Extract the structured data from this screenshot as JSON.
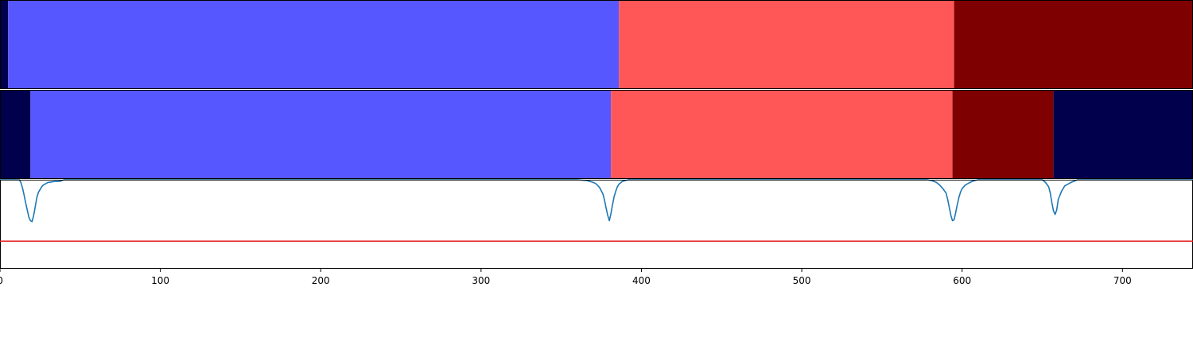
{
  "chart_data": [
    {
      "type": "heatmap",
      "panel": "track-1",
      "x_range": [
        0,
        744
      ],
      "segments": [
        {
          "start": 0,
          "end": 5,
          "color": "#00004c"
        },
        {
          "start": 5,
          "end": 386,
          "color": "#5757ff"
        },
        {
          "start": 386,
          "end": 595,
          "color": "#ff5757"
        },
        {
          "start": 595,
          "end": 744,
          "color": "#7f0000"
        }
      ]
    },
    {
      "type": "heatmap",
      "panel": "track-2",
      "x_range": [
        0,
        744
      ],
      "segments": [
        {
          "start": 0,
          "end": 19,
          "color": "#00004c"
        },
        {
          "start": 19,
          "end": 381,
          "color": "#5757ff"
        },
        {
          "start": 381,
          "end": 594,
          "color": "#ff5757"
        },
        {
          "start": 594,
          "end": 657,
          "color": "#7f0000"
        },
        {
          "start": 657,
          "end": 744,
          "color": "#00004c"
        }
      ]
    },
    {
      "type": "line",
      "panel": "signal",
      "x_range": [
        0,
        744
      ],
      "ylim": [
        0,
        1
      ],
      "xticks": [
        0,
        100,
        200,
        300,
        400,
        500,
        600,
        700
      ],
      "threshold": 0.31,
      "threshold_color": "#e31a1c",
      "line_color": "#1f77b4",
      "x": [
        0,
        12,
        13,
        14,
        15,
        16,
        17,
        18,
        19,
        20,
        21,
        22,
        23,
        24,
        25,
        26,
        27,
        28,
        29,
        30,
        31,
        32,
        34,
        36,
        38,
        40,
        360,
        366,
        370,
        372,
        374,
        376,
        377,
        378,
        379,
        380,
        381,
        382,
        383,
        384,
        385,
        386,
        388,
        390,
        392,
        394,
        578,
        581,
        584,
        586,
        588,
        590,
        591,
        592,
        593,
        594,
        595,
        596,
        597,
        598,
        599,
        600,
        602,
        604,
        606,
        608,
        610,
        640,
        650,
        652,
        654,
        655,
        656,
        657,
        658,
        659,
        660,
        662,
        664,
        668,
        672,
        744
      ],
      "y": [
        1.0,
        1.0,
        0.97,
        0.91,
        0.83,
        0.74,
        0.66,
        0.58,
        0.54,
        0.53,
        0.6,
        0.7,
        0.8,
        0.86,
        0.89,
        0.92,
        0.94,
        0.95,
        0.96,
        0.97,
        0.97,
        0.975,
        0.98,
        0.98,
        0.985,
        1.0,
        1.0,
        0.99,
        0.97,
        0.95,
        0.91,
        0.84,
        0.77,
        0.68,
        0.6,
        0.54,
        0.62,
        0.72,
        0.81,
        0.87,
        0.92,
        0.95,
        0.98,
        0.99,
        1.0,
        1.0,
        1.0,
        0.99,
        0.97,
        0.94,
        0.9,
        0.85,
        0.78,
        0.69,
        0.6,
        0.54,
        0.55,
        0.63,
        0.72,
        0.8,
        0.86,
        0.9,
        0.94,
        0.96,
        0.98,
        0.99,
        1.0,
        1.0,
        1.0,
        0.97,
        0.92,
        0.85,
        0.74,
        0.65,
        0.61,
        0.66,
        0.78,
        0.87,
        0.93,
        0.97,
        1.0,
        1.0
      ]
    }
  ]
}
